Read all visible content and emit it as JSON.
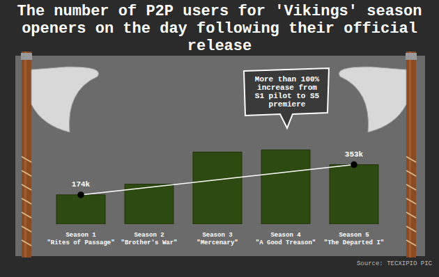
{
  "chart_data": {
    "type": "bar",
    "title": "The number of P2P users for 'Vikings' season openers on the day following their official release",
    "annotation": "More than 100% increase from S1 pilot to S5 premiere",
    "source": "Source: TECXIPIO PIC",
    "categories": [
      "Season 1\n\"Rites of Passage\"",
      "Season 2\n\"Brother's War\"",
      "Season 3\n\"Mercenary\"",
      "Season 4\n\"A Good Treason\"",
      "Season 5\n\"The Departed I\""
    ],
    "ylim": [
      0,
      1000000
    ],
    "tick_labels": "x",
    "grid": false,
    "series": [
      {
        "type": "bar",
        "color": "#2d4a10",
        "values": [
          174000,
          237000,
          428000,
          441000,
          353000
        ]
      },
      {
        "type": "line",
        "color": "#ffffff",
        "marker": "circle",
        "data_labels": true,
        "values": [
          174000,
          null,
          null,
          null,
          353000
        ],
        "value_labels": [
          "174k",
          null,
          null,
          null,
          "353k"
        ]
      }
    ]
  }
}
